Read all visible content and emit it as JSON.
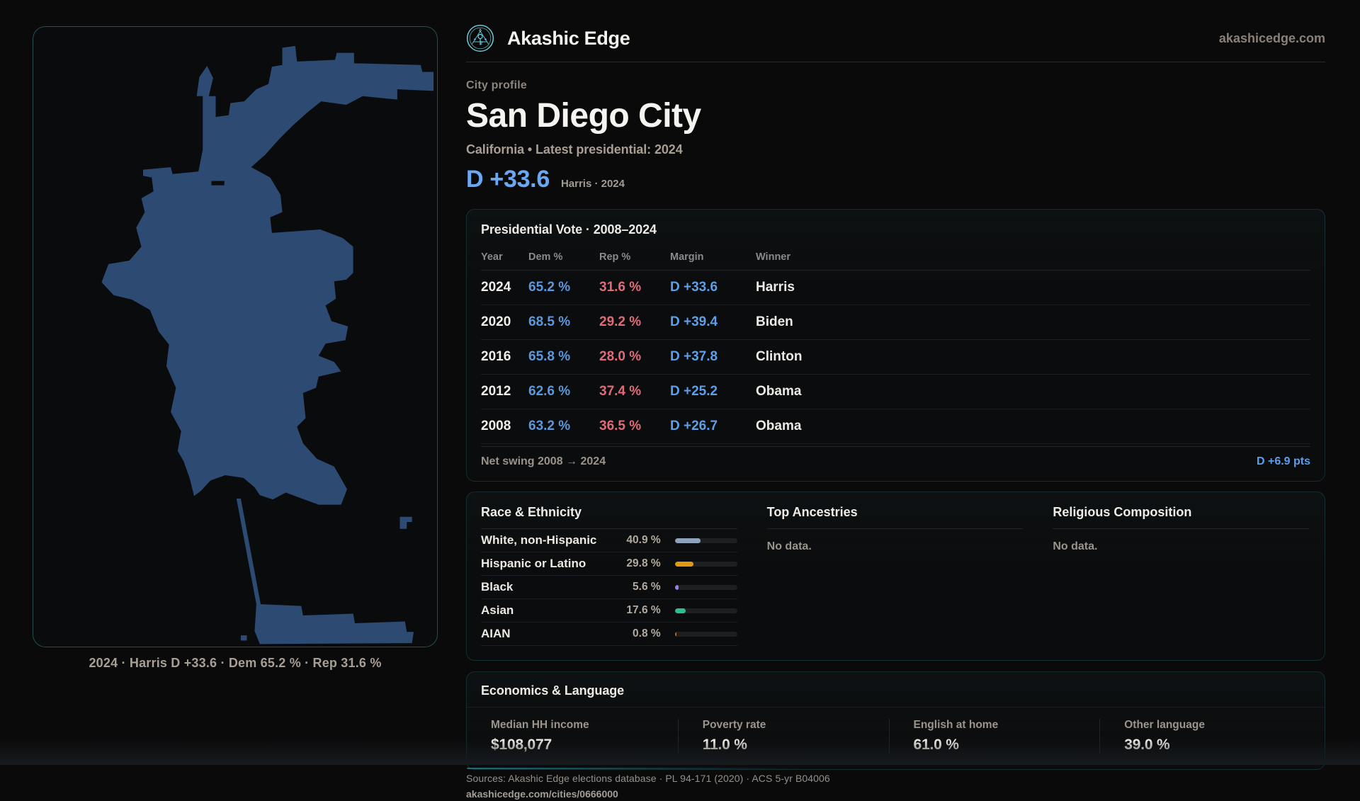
{
  "brand": {
    "name": "Akashic Edge",
    "domain": "akashicedge.com",
    "logo_color": "#6fd7e4"
  },
  "profile": {
    "eyebrow": "City profile",
    "title": "San Diego City",
    "subtitle": "California • Latest presidential: 2024",
    "headline_margin": "D +33.6",
    "headline_note": "Harris · 2024",
    "accent_blue": "#6ba8f4"
  },
  "map": {
    "caption": "2024 · Harris D +33.6 · Dem 65.2 % · Rep 31.6 %",
    "shape_fill": "#2d4a72",
    "border_color": "rgba(96,216,226,0.33)"
  },
  "vote_card": {
    "title": "Presidential Vote · 2008–2024",
    "columns": {
      "year": "Year",
      "dem": "Dem %",
      "rep": "Rep %",
      "margin": "Margin",
      "winner": "Winner"
    },
    "rows": [
      {
        "year": "2024",
        "dem": "65.2 %",
        "rep": "31.6 %",
        "margin": "D +33.6",
        "winner": "Harris"
      },
      {
        "year": "2020",
        "dem": "68.5 %",
        "rep": "29.2 %",
        "margin": "D +39.4",
        "winner": "Biden"
      },
      {
        "year": "2016",
        "dem": "65.8 %",
        "rep": "28.0 %",
        "margin": "D +37.8",
        "winner": "Clinton"
      },
      {
        "year": "2012",
        "dem": "62.6 %",
        "rep": "37.4 %",
        "margin": "D +25.2",
        "winner": "Obama"
      },
      {
        "year": "2008",
        "dem": "63.2 %",
        "rep": "36.5 %",
        "margin": "D +26.7",
        "winner": "Obama"
      }
    ],
    "footer_label": "Net swing 2008 → 2024",
    "footer_value": "D +6.9 pts",
    "dem_color": "#5a99de",
    "rep_color": "#e26b7a",
    "margin_color": "#5d9fe8"
  },
  "demographics": {
    "race": {
      "title": "Race & Ethnicity",
      "rows": [
        {
          "label": "White, non-Hispanic",
          "value": "40.9 %",
          "pct": 40.9,
          "color": "#8fa3bd"
        },
        {
          "label": "Hispanic or Latino",
          "value": "29.8 %",
          "pct": 29.8,
          "color": "#e29a12"
        },
        {
          "label": "Black",
          "value": "5.6 %",
          "pct": 5.6,
          "color": "#9b7df0"
        },
        {
          "label": "Asian",
          "value": "17.6 %",
          "pct": 17.6,
          "color": "#2fbe8e"
        },
        {
          "label": "AIAN",
          "value": "0.8 %",
          "pct": 0.8,
          "color": "#c06a20"
        }
      ]
    },
    "ancestries": {
      "title": "Top Ancestries",
      "empty": "No data."
    },
    "religion": {
      "title": "Religious Composition",
      "empty": "No data."
    }
  },
  "economics": {
    "title": "Economics & Language",
    "stats": [
      {
        "label": "Median HH income",
        "value": "$108,077"
      },
      {
        "label": "Poverty rate",
        "value": "11.0 %"
      },
      {
        "label": "English at home",
        "value": "61.0 %"
      },
      {
        "label": "Other language",
        "value": "39.0 %"
      }
    ]
  },
  "footer": {
    "sources": "Sources: Akashic Edge elections database · PL 94-171 (2020) · ACS 5-yr B04006",
    "permalink": "akashicedge.com/cities/0666000"
  }
}
